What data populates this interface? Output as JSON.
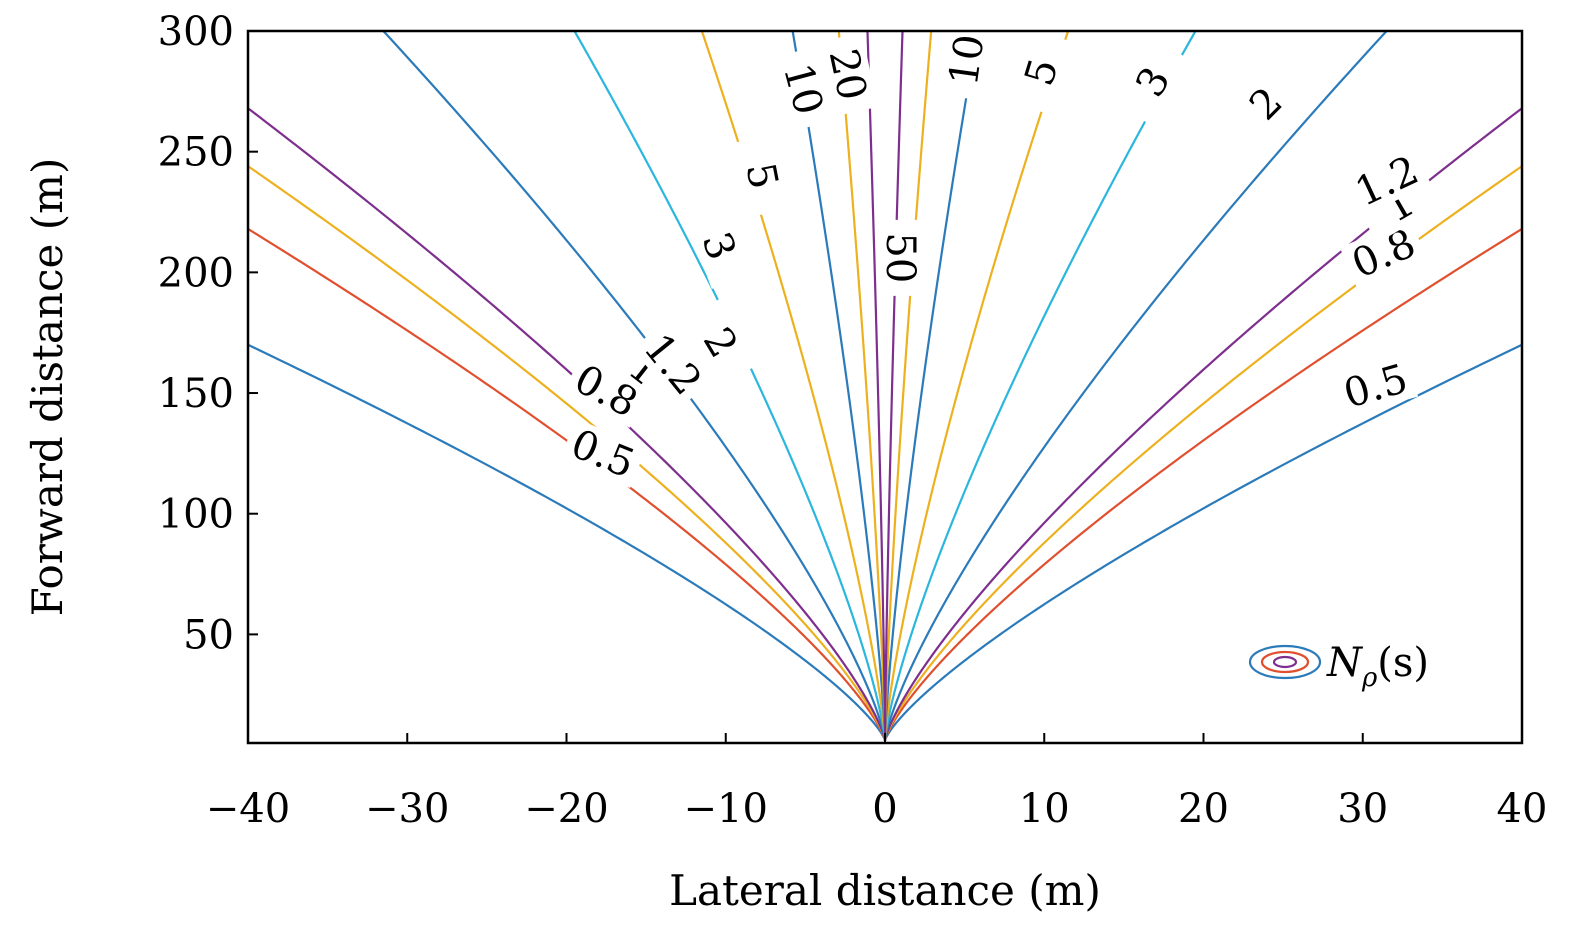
{
  "chart_data": {
    "type": "contour",
    "xlabel": "Lateral distance (m)",
    "ylabel": "Forward distance (m)",
    "xlim": [
      -40,
      40
    ],
    "ylim": [
      5,
      300
    ],
    "xticks": [
      -40,
      -30,
      -20,
      -10,
      0,
      10,
      20,
      30,
      40
    ],
    "xtick_labels": [
      "−40",
      "−30",
      "−20",
      "−10",
      "0",
      "10",
      "20",
      "30",
      "40"
    ],
    "yticks": [
      50,
      100,
      150,
      200,
      250,
      300
    ],
    "ytick_labels": [
      "50",
      "100",
      "150",
      "200",
      "250",
      "300"
    ],
    "grid": false,
    "legend": {
      "position": "bottom-right",
      "label": "N",
      "subscript": "ρ",
      "suffix": "(s)"
    },
    "levels": [
      {
        "value": 0.5,
        "label": "0.5",
        "color": "#2b7bbb",
        "y_at_x40": 170
      },
      {
        "value": 0.8,
        "label": "0.8",
        "color": "#e0502f",
        "y_at_x40": 218
      },
      {
        "value": 1,
        "label": "1",
        "color": "#edb120",
        "y_at_x40": 244
      },
      {
        "value": 1.2,
        "label": "1.2",
        "color": "#7e2f8e",
        "y_at_x40": 268
      },
      {
        "value": 2,
        "label": "2",
        "color": "#2b7bbb",
        "y_at_x300": 31.5
      },
      {
        "value": 3,
        "label": "3",
        "color": "#2bb6de",
        "y_at_x300": 19.5
      },
      {
        "value": 5,
        "label": "5",
        "color": "#edb120",
        "y_at_x300": 11.5
      },
      {
        "value": 10,
        "label": "10",
        "color": "#2b7bbb",
        "y_at_x300": 5.8
      },
      {
        "value": 20,
        "label": "20",
        "color": "#edb120",
        "y_at_x300": 2.9
      },
      {
        "value": 50,
        "label": "50",
        "color": "#7e2f8e",
        "y_at_x300": 1.1
      }
    ]
  }
}
